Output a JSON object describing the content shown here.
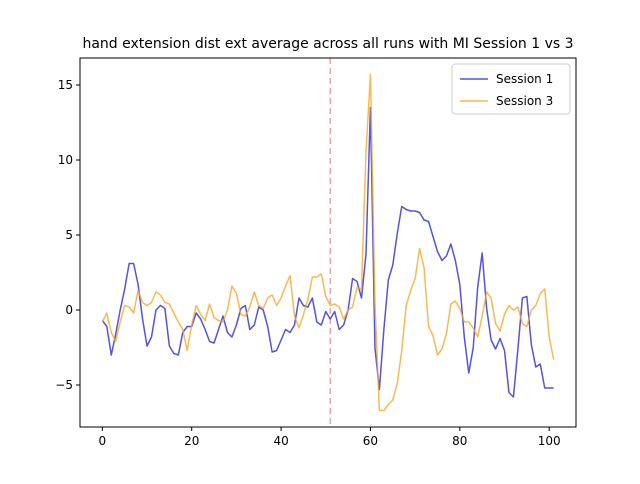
{
  "chart_data": {
    "type": "line",
    "title": "hand extension dist ext average across all runs with MI Session 1 vs 3",
    "xlabel": "",
    "ylabel": "",
    "xlim": [
      -5,
      106
    ],
    "ylim": [
      -7.8,
      16.8
    ],
    "x_ticks": [
      0,
      20,
      40,
      60,
      80,
      100
    ],
    "y_ticks": [
      -5,
      0,
      5,
      10,
      15
    ],
    "grid": false,
    "legend_position": "upper right",
    "vline": {
      "x": 51,
      "color": "#f4a3a3",
      "style": "dashed"
    },
    "series": [
      {
        "name": "Session 1",
        "color": "#2222dd",
        "values": [
          -0.7,
          -1.1,
          -3.0,
          -1.6,
          0.0,
          1.4,
          3.1,
          3.1,
          1.7,
          -0.6,
          -2.4,
          -1.8,
          0.0,
          0.3,
          0.1,
          -2.4,
          -2.9,
          -3.0,
          -1.5,
          -1.1,
          -1.1,
          -0.2,
          -0.6,
          -1.3,
          -2.1,
          -2.2,
          -1.3,
          -0.4,
          -1.5,
          -1.8,
          -1.0,
          0.1,
          0.3,
          -1.3,
          -1.0,
          0.2,
          0.0,
          -1.1,
          -2.8,
          -2.7,
          -2.0,
          -1.3,
          -1.5,
          -1.0,
          0.8,
          0.3,
          0.2,
          0.8,
          -0.8,
          -1.0,
          -0.1,
          -0.6,
          -0.1,
          -1.3,
          -1.0,
          0.0,
          2.1,
          1.9,
          0.8,
          3.7,
          13.5,
          -2.5,
          -5.3,
          -1.3,
          2.0,
          3.0,
          5.1,
          6.9,
          6.7,
          6.6,
          6.6,
          6.5,
          6.0,
          5.9,
          4.9,
          3.9,
          3.3,
          3.6,
          4.4,
          3.3,
          1.7,
          -1.8,
          -4.2,
          -2.5,
          1.5,
          3.8,
          0.1,
          -2.0,
          -2.6,
          -1.9,
          -2.7,
          -5.5,
          -5.8,
          -2.6,
          0.8,
          0.9,
          -2.3,
          -3.8,
          -3.6,
          -5.2,
          -5.2,
          -5.2
        ]
      },
      {
        "name": "Session 3",
        "color": "#f5a623",
        "values": [
          -0.8,
          -0.2,
          -1.5,
          -2.1,
          -0.8,
          0.3,
          0.2,
          -0.2,
          1.3,
          0.5,
          0.3,
          0.5,
          1.2,
          1.0,
          0.5,
          0.4,
          -0.2,
          -0.8,
          -1.3,
          -2.7,
          -1.0,
          0.3,
          -0.3,
          -0.7,
          0.4,
          -0.5,
          -0.7,
          -0.8,
          0.0,
          1.6,
          1.1,
          -0.3,
          -0.4,
          0.2,
          1.2,
          0.3,
          0.1,
          0.8,
          1.0,
          0.3,
          0.8,
          1.6,
          2.3,
          -0.4,
          -1.2,
          -0.3,
          0.7,
          2.2,
          2.2,
          2.4,
          0.9,
          0.3,
          0.4,
          0.2,
          -0.6,
          0.0,
          0.2,
          1.5,
          1.4,
          10.5,
          15.7,
          0.5,
          -6.7,
          -6.7,
          -6.3,
          -6.0,
          -4.9,
          -2.7,
          0.3,
          1.3,
          2.1,
          4.1,
          2.8,
          -1.1,
          -1.7,
          -3.0,
          -2.6,
          -1.6,
          0.4,
          0.6,
          0.1,
          -0.8,
          -0.8,
          -1.2,
          -1.8,
          -0.4,
          1.2,
          0.8,
          -0.9,
          -1.4,
          -0.3,
          0.3,
          0.0,
          0.2,
          -0.9,
          -1.1,
          0.0,
          0.3,
          1.1,
          1.4,
          -1.8,
          -3.3
        ]
      }
    ]
  }
}
